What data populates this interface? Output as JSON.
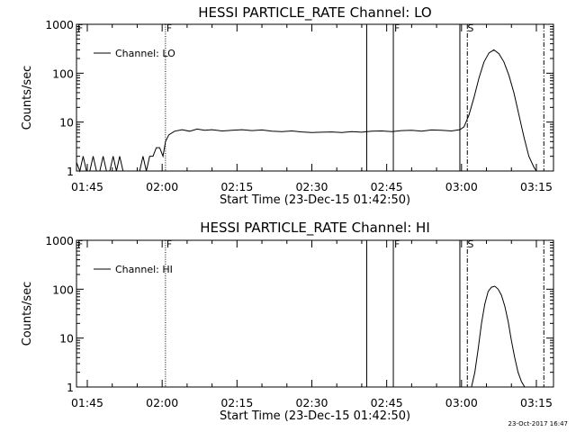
{
  "footer": {
    "timestamp": "23-Oct-2017 16:47"
  },
  "chart_data": [
    {
      "type": "line",
      "title": "HESSI PARTICLE_RATE Channel: LO",
      "xlabel": "Start Time (23-Dec-15 01:42:50)",
      "ylabel": "Counts/sec",
      "y_scale": "log",
      "ylim": [
        1,
        1000
      ],
      "xlim_minutes_after_01_42_50": [
        0,
        95.6
      ],
      "y_ticks": [
        "1",
        "10",
        "100",
        "1000"
      ],
      "x_ticks": [
        "01:45",
        "02:00",
        "02:15",
        "02:30",
        "02:45",
        "03:00",
        "03:15"
      ],
      "legend": {
        "position": "top-left",
        "entries": [
          {
            "label": "Channel: LO"
          }
        ]
      },
      "flag_markers": [
        {
          "label": "F",
          "x": "01:42:50"
        },
        {
          "label": "F",
          "x": "02:00:40"
        },
        {
          "label": "F",
          "x": "02:46:20"
        },
        {
          "label": "S",
          "x": "03:01:00"
        }
      ],
      "vertical_lines": [
        {
          "x": "02:00:40",
          "style": "dotted"
        },
        {
          "x": "02:41:00",
          "style": "solid"
        },
        {
          "x": "02:46:20",
          "style": "solid"
        },
        {
          "x": "02:59:40",
          "style": "solid"
        },
        {
          "x": "03:01:10",
          "style": "dashdot"
        },
        {
          "x": "03:16:30",
          "style": "dashdot"
        }
      ],
      "series": [
        {
          "x": [
            "01:42:50",
            "01:43:30",
            "01:44:10",
            "01:44:50",
            "01:45:30",
            "01:46:10",
            "01:46:50",
            "01:47:30",
            "01:48:10",
            "01:48:50",
            "01:49:30",
            "01:50:10",
            "01:50:50",
            "01:51:30",
            "01:52:10",
            "01:52:50",
            "01:53:30",
            "01:54:10",
            "01:54:50",
            "01:55:30",
            "01:56:10",
            "01:56:50",
            "01:57:30",
            "01:58:10",
            "01:58:50",
            "01:59:30",
            "02:00:10",
            "02:00:40",
            "02:01:20",
            "02:02:30",
            "02:04:00",
            "02:05:30",
            "02:07:00",
            "02:08:30",
            "02:10:00",
            "02:12:00",
            "02:14:00",
            "02:16:00",
            "02:18:00",
            "02:20:00",
            "02:22:00",
            "02:24:00",
            "02:26:00",
            "02:28:00",
            "02:30:00",
            "02:32:00",
            "02:34:00",
            "02:36:00",
            "02:38:00",
            "02:40:00",
            "02:42:00",
            "02:44:00",
            "02:46:00",
            "02:48:00",
            "02:50:00",
            "02:52:00",
            "02:54:00",
            "02:56:00",
            "02:58:00",
            "02:59:40",
            "03:00:30",
            "03:01:30",
            "03:02:30",
            "03:03:30",
            "03:04:30",
            "03:05:30",
            "03:06:30",
            "03:07:30",
            "03:08:30",
            "03:09:30",
            "03:10:30",
            "03:11:30",
            "03:12:30",
            "03:13:30",
            "03:14:30",
            "03:15:00"
          ],
          "y": [
            1.5,
            1,
            2,
            1,
            1,
            2,
            1,
            1,
            2,
            1,
            1,
            2,
            1,
            2,
            1,
            1,
            1,
            1,
            1,
            1,
            2,
            1,
            2,
            2,
            3,
            3,
            2,
            4,
            5.5,
            6.5,
            7,
            6.5,
            7.2,
            6.8,
            7,
            6.6,
            6.8,
            7,
            6.7,
            6.9,
            6.5,
            6.4,
            6.6,
            6.3,
            6.1,
            6.2,
            6.3,
            6.1,
            6.4,
            6.2,
            6.5,
            6.6,
            6.4,
            6.7,
            6.8,
            6.5,
            6.9,
            6.8,
            6.6,
            7,
            8,
            14,
            32,
            80,
            170,
            260,
            300,
            250,
            170,
            90,
            40,
            14,
            5,
            2,
            1.2,
            1
          ]
        }
      ]
    },
    {
      "type": "line",
      "title": "HESSI PARTICLE_RATE Channel: HI",
      "xlabel": "Start Time (23-Dec-15 01:42:50)",
      "ylabel": "Counts/sec",
      "y_scale": "log",
      "ylim": [
        1,
        1000
      ],
      "xlim_minutes_after_01_42_50": [
        0,
        95.6
      ],
      "y_ticks": [
        "1",
        "10",
        "100",
        "1000"
      ],
      "x_ticks": [
        "01:45",
        "02:00",
        "02:15",
        "02:30",
        "02:45",
        "03:00",
        "03:15"
      ],
      "legend": {
        "position": "top-left",
        "entries": [
          {
            "label": "Channel: HI"
          }
        ]
      },
      "flag_markers": [
        {
          "label": "F",
          "x": "01:42:50"
        },
        {
          "label": "F",
          "x": "02:00:40"
        },
        {
          "label": "F",
          "x": "02:46:20"
        },
        {
          "label": "S",
          "x": "03:01:00"
        }
      ],
      "vertical_lines": [
        {
          "x": "02:00:40",
          "style": "dotted"
        },
        {
          "x": "02:41:00",
          "style": "solid"
        },
        {
          "x": "02:46:20",
          "style": "solid"
        },
        {
          "x": "02:59:40",
          "style": "solid"
        },
        {
          "x": "03:01:10",
          "style": "dashdot"
        },
        {
          "x": "03:16:30",
          "style": "dashdot"
        }
      ],
      "series": [
        {
          "x": [
            "03:02:00",
            "03:02:40",
            "03:03:20",
            "03:04:00",
            "03:04:40",
            "03:05:20",
            "03:06:00",
            "03:06:40",
            "03:07:20",
            "03:08:00",
            "03:08:40",
            "03:09:20",
            "03:10:00",
            "03:10:40",
            "03:11:20",
            "03:12:00",
            "03:12:40"
          ],
          "y": [
            1,
            2,
            6,
            20,
            50,
            90,
            110,
            115,
            100,
            75,
            45,
            22,
            9,
            4,
            2,
            1.3,
            1
          ]
        }
      ]
    }
  ]
}
